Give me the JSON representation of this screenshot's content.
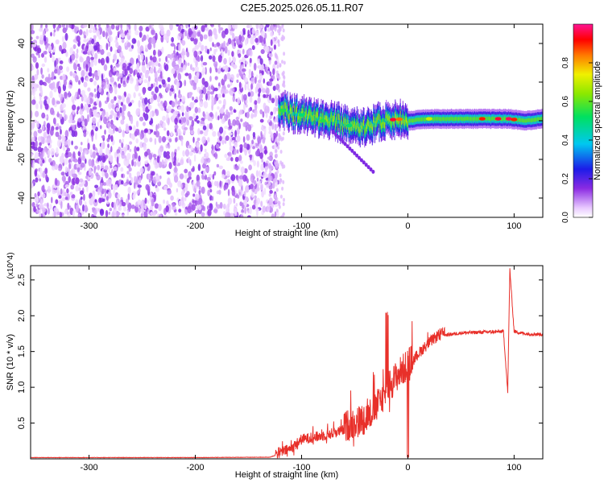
{
  "title": "C2E5.2025.026.05.11.R07",
  "colors": {
    "snr_line": "#e8302a",
    "spectrum_noise": "#7a1fe0",
    "background": "#ffffff"
  },
  "chart_data": [
    {
      "type": "heatmap",
      "title": "C2E5.2025.026.05.11.R07",
      "xlabel": "Height of straight line (km)",
      "ylabel": "Frequency (Hz)",
      "xlim": [
        -355,
        127
      ],
      "ylim": [
        -50,
        50
      ],
      "x_ticks": [
        -300,
        -200,
        -100,
        0,
        100
      ],
      "y_ticks": [
        -40,
        -20,
        0,
        20,
        40
      ],
      "colorbar": {
        "label": "Normalized spectral amplitude",
        "range": [
          0,
          1
        ],
        "ticks": [
          "0.0",
          "0.2",
          "0.4",
          "0.6",
          "0.8"
        ],
        "colormap": "rainbow (white-violet-blue-cyan-green-yellow-red-magenta)"
      },
      "regions": [
        {
          "name": "noise",
          "x_range": [
            -355,
            -122
          ],
          "freq_range": [
            -50,
            50
          ],
          "amplitude": 0.1
        },
        {
          "name": "signal band",
          "x_range": [
            -122,
            127
          ],
          "center_freq": 0,
          "amplitude": [
            0.3,
            1.0
          ]
        }
      ],
      "signal_center_freq": [
        [
          -122,
          6
        ],
        [
          -110,
          4
        ],
        [
          -100,
          3
        ],
        [
          -90,
          2
        ],
        [
          -80,
          0
        ],
        [
          -70,
          0
        ],
        [
          -60,
          -2
        ],
        [
          -50,
          -3
        ],
        [
          -40,
          -4
        ],
        [
          -35,
          -3
        ],
        [
          -30,
          -1
        ],
        [
          -20,
          0
        ],
        [
          -10,
          1
        ],
        [
          0,
          0
        ],
        [
          20,
          1
        ],
        [
          50,
          1
        ],
        [
          80,
          1
        ],
        [
          95,
          1
        ],
        [
          110,
          0
        ],
        [
          127,
          1
        ]
      ],
      "grid": false
    },
    {
      "type": "line",
      "xlabel": "Height of straight line (km)",
      "ylabel": "SNR (10 * v/v)",
      "y_multiplier": "(x10^4)",
      "xlim": [
        -355,
        127
      ],
      "ylim": [
        0,
        27000
      ],
      "x_ticks": [
        -300,
        -200,
        -100,
        0,
        100
      ],
      "y_ticks": [
        5000,
        10000,
        15000,
        20000,
        25000
      ],
      "y_tick_labels": [
        "0.5",
        "1.0",
        "1.5",
        "2.0",
        "2.5"
      ],
      "series": [
        {
          "values": [
            [
              -355,
              150
            ],
            [
              -200,
              150
            ],
            [
              -130,
              200
            ],
            [
              -110,
              1200
            ],
            [
              -100,
              2500
            ],
            [
              -80,
              3000
            ],
            [
              -60,
              3800
            ],
            [
              -40,
              5000
            ],
            [
              -30,
              6500
            ],
            [
              -20,
              9000
            ],
            [
              -10,
              11000
            ],
            [
              0,
              12500
            ],
            [
              10,
              14500
            ],
            [
              20,
              16000
            ],
            [
              30,
              17200
            ],
            [
              50,
              17600
            ],
            [
              70,
              17700
            ],
            [
              90,
              17800
            ],
            [
              94,
              9300
            ],
            [
              96,
              26500
            ],
            [
              100,
              17800
            ],
            [
              110,
              17500
            ],
            [
              127,
              17400
            ]
          ]
        }
      ],
      "grid": false
    }
  ]
}
